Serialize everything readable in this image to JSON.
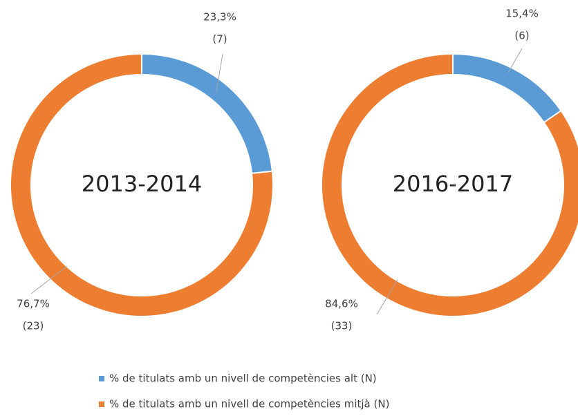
{
  "chart_data": [
    {
      "type": "donut",
      "title": "2013-2014",
      "values": [
        23.3,
        76.7
      ],
      "value_labels": [
        "23,3%",
        "76,7%"
      ],
      "counts": [
        7,
        23
      ],
      "count_labels": [
        "(7)",
        "(23)"
      ],
      "colors": [
        "#5b9bd5",
        "#ed7d31"
      ]
    },
    {
      "type": "donut",
      "title": "2016-2017",
      "values": [
        15.4,
        84.6
      ],
      "value_labels": [
        "15,4%",
        "84,6%"
      ],
      "counts": [
        6,
        33
      ],
      "count_labels": [
        "(6)",
        "(33)"
      ],
      "colors": [
        "#5b9bd5",
        "#ed7d31"
      ]
    }
  ],
  "legend": [
    {
      "name": "% de titulats amb un nivell de competències alt (N)",
      "color": "#5b9bd5"
    },
    {
      "name": "% de titulats amb un nivell de competències mitjà (N)",
      "color": "#ed7d31"
    }
  ]
}
